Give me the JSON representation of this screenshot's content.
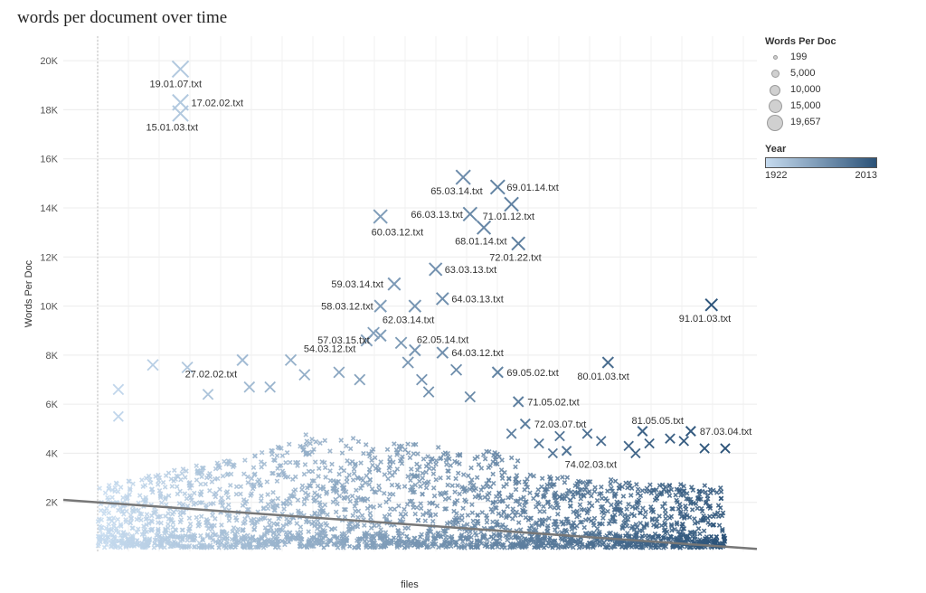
{
  "title": "words per document over time",
  "chart_data": {
    "type": "scatter",
    "title": "words per document over time",
    "xlabel": "files",
    "ylabel": "Words Per Doc",
    "ylim": [
      0,
      21000
    ],
    "yticks": [
      2000,
      4000,
      6000,
      8000,
      10000,
      12000,
      14000,
      16000,
      18000,
      20000
    ],
    "ytick_labels": [
      "2K",
      "4K",
      "6K",
      "8K",
      "10K",
      "12K",
      "14K",
      "16K",
      "18K",
      "20K"
    ],
    "xticks_shown": false,
    "grid": true,
    "legend_position": "right",
    "marker": "x",
    "color_encoding": "Year",
    "size_encoding": "Words Per Doc",
    "x_domain_years": [
      1922,
      2013
    ],
    "trend_line": {
      "start": {
        "year": 1918,
        "y": 2100
      },
      "end": {
        "year": 2016,
        "y": 100
      }
    },
    "labeled_points": [
      {
        "label": "19.01.07.txt",
        "year": 1934,
        "y": 19657
      },
      {
        "label": "17.02.02.txt",
        "year": 1934,
        "y": 18300
      },
      {
        "label": "15.01.03.txt",
        "year": 1934,
        "y": 17850
      },
      {
        "label": "27.02.02.txt",
        "year": 1943,
        "y": 7800
      },
      {
        "label": "54.03.12.txt",
        "year": 1961,
        "y": 8600
      },
      {
        "label": "57.03.15.txt",
        "year": 1963,
        "y": 8800
      },
      {
        "label": "58.03.12.txt",
        "year": 1963,
        "y": 10000
      },
      {
        "label": "59.03.14.txt",
        "year": 1965,
        "y": 10900
      },
      {
        "label": "60.03.12.txt",
        "year": 1963,
        "y": 13650
      },
      {
        "label": "62.03.14.txt",
        "year": 1968,
        "y": 10000
      },
      {
        "label": "62.05.14.txt",
        "year": 1968,
        "y": 8200
      },
      {
        "label": "63.03.13.txt",
        "year": 1971,
        "y": 11500
      },
      {
        "label": "64.03.13.txt",
        "year": 1972,
        "y": 10300
      },
      {
        "label": "64.03.12.txt",
        "year": 1972,
        "y": 8100
      },
      {
        "label": "65.03.14.txt",
        "year": 1975,
        "y": 15250
      },
      {
        "label": "66.03.13.txt",
        "year": 1976,
        "y": 13750
      },
      {
        "label": "68.01.14.txt",
        "year": 1978,
        "y": 13200
      },
      {
        "label": "69.01.14.txt",
        "year": 1980,
        "y": 14850
      },
      {
        "label": "71.01.12.txt",
        "year": 1982,
        "y": 14150
      },
      {
        "label": "72.01.22.txt",
        "year": 1983,
        "y": 12550
      },
      {
        "label": "69.05.02.txt",
        "year": 1980,
        "y": 7300
      },
      {
        "label": "71.05.02.txt",
        "year": 1983,
        "y": 6100
      },
      {
        "label": "72.03.07.txt",
        "year": 1984,
        "y": 5200
      },
      {
        "label": "74.02.03.txt",
        "year": 1990,
        "y": 4100
      },
      {
        "label": "80.01.03.txt",
        "year": 1996,
        "y": 7700
      },
      {
        "label": "81.05.05.txt",
        "year": 2001,
        "y": 4900
      },
      {
        "label": "87.03.04.txt",
        "year": 2008,
        "y": 4900
      },
      {
        "label": "91.01.03.txt",
        "year": 2011,
        "y": 10050
      }
    ],
    "extra_markers": [
      {
        "year": 1925,
        "y": 6600
      },
      {
        "year": 1925,
        "y": 5500
      },
      {
        "year": 1930,
        "y": 7600
      },
      {
        "year": 1935,
        "y": 7500
      },
      {
        "year": 1938,
        "y": 6400
      },
      {
        "year": 1944,
        "y": 6700
      },
      {
        "year": 1947,
        "y": 6700
      },
      {
        "year": 1950,
        "y": 7800
      },
      {
        "year": 1952,
        "y": 7200
      },
      {
        "year": 1957,
        "y": 7300
      },
      {
        "year": 1960,
        "y": 7000
      },
      {
        "year": 1962,
        "y": 8900
      },
      {
        "year": 1966,
        "y": 8500
      },
      {
        "year": 1967,
        "y": 7700
      },
      {
        "year": 1969,
        "y": 7000
      },
      {
        "year": 1970,
        "y": 6500
      },
      {
        "year": 1974,
        "y": 7400
      },
      {
        "year": 1976,
        "y": 6300
      },
      {
        "year": 1982,
        "y": 4800
      },
      {
        "year": 1986,
        "y": 4400
      },
      {
        "year": 1989,
        "y": 4700
      },
      {
        "year": 1993,
        "y": 4800
      },
      {
        "year": 1995,
        "y": 4500
      },
      {
        "year": 1999,
        "y": 4300
      },
      {
        "year": 2002,
        "y": 4400
      },
      {
        "year": 2005,
        "y": 4600
      },
      {
        "year": 2007,
        "y": 4500
      },
      {
        "year": 2010,
        "y": 4200
      },
      {
        "year": 2013,
        "y": 4200
      },
      {
        "year": 2000,
        "y": 4000
      },
      {
        "year": 1988,
        "y": 4000
      }
    ]
  },
  "legend": {
    "size_title": "Words Per Doc",
    "size_items": [
      "199",
      "5,000",
      "10,000",
      "15,000",
      "19,657"
    ],
    "color_title": "Year",
    "year_min": "1922",
    "year_max": "2013",
    "color_light": "#c6dbef",
    "color_dark": "#2b5278"
  }
}
